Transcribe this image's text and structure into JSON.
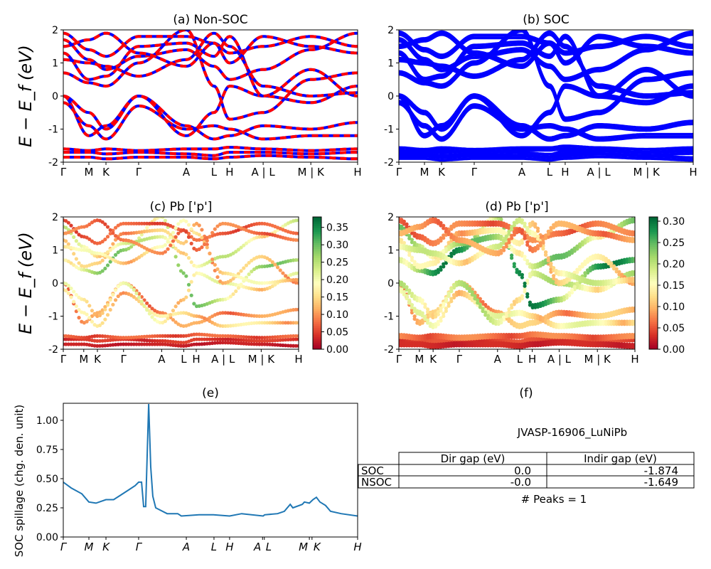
{
  "chart_data": [
    {
      "type": "line",
      "title": "(a) Non-SOC",
      "ylabel": "E − E_f (eV)",
      "ylim": [
        -2,
        2
      ],
      "yticks": [
        "-2",
        "-1",
        "0",
        "1",
        "2"
      ],
      "xticks": [
        "Γ",
        "M",
        "K",
        "Γ",
        "A",
        "L",
        "H",
        "A | L",
        "M | K",
        "H"
      ],
      "kpath": [
        0,
        0.087,
        0.145,
        0.256,
        0.418,
        0.512,
        0.565,
        0.679,
        0.841,
        1.0
      ],
      "series_colors": [
        "#0000ff",
        "#ff0000"
      ],
      "style": "blue solid overlaid by red dashed"
    },
    {
      "type": "line",
      "title": "(b) SOC",
      "ylim": [
        -2,
        2
      ],
      "yticks": [
        "-2",
        "-1",
        "0",
        "1",
        "2"
      ],
      "xticks": [
        "Γ",
        "M",
        "K",
        "Γ",
        "A",
        "L",
        "H",
        "A | L",
        "M | K",
        "H"
      ],
      "series_colors": [
        "#0000ff"
      ]
    },
    {
      "type": "scatter",
      "title": "(c)  Pb ['p']",
      "ylabel": "E − E_f (eV)",
      "ylim": [
        -2,
        2
      ],
      "yticks": [
        "-2",
        "-1",
        "0",
        "1",
        "2"
      ],
      "xticks": [
        "Γ",
        "M",
        "K",
        "Γ",
        "A",
        "L",
        "H",
        "A | L",
        "M | K",
        "H"
      ],
      "colormap": "RdYlGn",
      "colorbar": {
        "range": [
          0,
          0.38
        ],
        "ticks": [
          "0.00",
          "0.05",
          "0.10",
          "0.15",
          "0.20",
          "0.25",
          "0.30",
          "0.35"
        ]
      }
    },
    {
      "type": "scatter",
      "title": "(d) Pb ['p']",
      "ylim": [
        -2,
        2
      ],
      "yticks": [
        "-2",
        "-1",
        "0",
        "1",
        "2"
      ],
      "xticks": [
        "Γ",
        "M",
        "K",
        "Γ",
        "A",
        "L",
        "H",
        "A | L",
        "M | K",
        "H"
      ],
      "colormap": "RdYlGn",
      "colorbar": {
        "range": [
          0,
          0.31
        ],
        "ticks": [
          "0.00",
          "0.05",
          "0.10",
          "0.15",
          "0.20",
          "0.25",
          "0.30"
        ]
      }
    },
    {
      "type": "line",
      "title": "(e)",
      "ylabel": "SOC spillage (chg. den. unit)",
      "ylim": [
        0,
        1.146
      ],
      "yticks": [
        "0.00",
        "0.25",
        "0.50",
        "0.75",
        "1.00"
      ],
      "xticks": [
        "Γ",
        "M",
        "K",
        "Γ",
        "A",
        "L",
        "H",
        "A",
        "L",
        "M",
        "K",
        "H"
      ],
      "xtick_pos": [
        0,
        0.087,
        0.145,
        0.256,
        0.418,
        0.512,
        0.565,
        0.677,
        0.683,
        0.836,
        0.845,
        1.0
      ],
      "color": "#1f77b4",
      "x": [
        0,
        0.027,
        0.063,
        0.087,
        0.111,
        0.145,
        0.171,
        0.196,
        0.22,
        0.244,
        0.256,
        0.266,
        0.273,
        0.28,
        0.29,
        0.297,
        0.304,
        0.314,
        0.353,
        0.389,
        0.401,
        0.461,
        0.51,
        0.565,
        0.606,
        0.679,
        0.684,
        0.728,
        0.751,
        0.771,
        0.78,
        0.812,
        0.819,
        0.836,
        0.848,
        0.86,
        0.872,
        0.891,
        0.908,
        0.944,
        1.0
      ],
      "y": [
        0.47,
        0.42,
        0.37,
        0.3,
        0.29,
        0.32,
        0.32,
        0.36,
        0.4,
        0.44,
        0.47,
        0.47,
        0.26,
        0.26,
        1.14,
        0.6,
        0.35,
        0.25,
        0.2,
        0.2,
        0.18,
        0.19,
        0.19,
        0.18,
        0.2,
        0.18,
        0.19,
        0.2,
        0.22,
        0.28,
        0.25,
        0.28,
        0.3,
        0.29,
        0.32,
        0.34,
        0.3,
        0.27,
        0.22,
        0.2,
        0.18
      ]
    },
    {
      "type": "table",
      "title": "(f)",
      "caption": "JVASP-16906_LuNiPb",
      "columns": [
        "",
        "Dir gap (eV)",
        "Indir gap (eV)"
      ],
      "rows": [
        [
          "SOC",
          "0.0",
          "-1.874"
        ],
        [
          "NSOC",
          "-0.0",
          "-1.649"
        ]
      ],
      "footer": "# Peaks = 1"
    }
  ]
}
